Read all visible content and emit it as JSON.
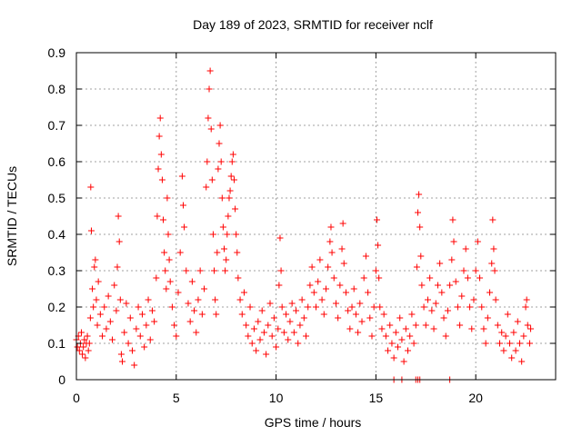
{
  "chart_data": {
    "type": "scatter",
    "title": "Day 189 of 2023, SRMTID for receiver nclf",
    "xlabel": "GPS time / hours",
    "ylabel": "SRMTID / TECUs",
    "xlim": [
      0,
      24
    ],
    "ylim": [
      0,
      0.9
    ],
    "xticks": [
      0,
      5,
      10,
      15,
      20
    ],
    "yticks": [
      0,
      0.1,
      0.2,
      0.3,
      0.4,
      0.5,
      0.6,
      0.7,
      0.8,
      0.9
    ],
    "xtick_labels": [
      "0",
      "5",
      "10",
      "15",
      "20"
    ],
    "ytick_labels": [
      "0",
      "0.1",
      "0.2",
      "0.3",
      "0.4",
      "0.5",
      "0.6",
      "0.7",
      "0.8",
      "0.9"
    ],
    "grid": true,
    "marker": "plus",
    "color": "#ff0000",
    "series": [
      {
        "name": "SRMTID",
        "points": [
          [
            0.0,
            0.11
          ],
          [
            0.05,
            0.09
          ],
          [
            0.1,
            0.12
          ],
          [
            0.15,
            0.08
          ],
          [
            0.2,
            0.1
          ],
          [
            0.25,
            0.13
          ],
          [
            0.3,
            0.07
          ],
          [
            0.35,
            0.09
          ],
          [
            0.4,
            0.11
          ],
          [
            0.45,
            0.06
          ],
          [
            0.5,
            0.1
          ],
          [
            0.55,
            0.12
          ],
          [
            0.6,
            0.08
          ],
          [
            0.65,
            0.1
          ],
          [
            0.7,
            0.17
          ],
          [
            0.72,
            0.53
          ],
          [
            0.75,
            0.41
          ],
          [
            0.8,
            0.25
          ],
          [
            0.85,
            0.2
          ],
          [
            0.9,
            0.31
          ],
          [
            0.95,
            0.33
          ],
          [
            1.0,
            0.22
          ],
          [
            1.05,
            0.15
          ],
          [
            1.1,
            0.27
          ],
          [
            1.2,
            0.18
          ],
          [
            1.3,
            0.12
          ],
          [
            1.4,
            0.2
          ],
          [
            1.5,
            0.14
          ],
          [
            1.6,
            0.23
          ],
          [
            1.7,
            0.16
          ],
          [
            1.8,
            0.11
          ],
          [
            1.9,
            0.26
          ],
          [
            2.0,
            0.19
          ],
          [
            2.05,
            0.31
          ],
          [
            2.1,
            0.45
          ],
          [
            2.15,
            0.38
          ],
          [
            2.2,
            0.22
          ],
          [
            2.25,
            0.07
          ],
          [
            2.3,
            0.05
          ],
          [
            2.4,
            0.13
          ],
          [
            2.5,
            0.21
          ],
          [
            2.6,
            0.1
          ],
          [
            2.7,
            0.17
          ],
          [
            2.8,
            0.08
          ],
          [
            2.9,
            0.04
          ],
          [
            3.0,
            0.14
          ],
          [
            3.1,
            0.2
          ],
          [
            3.2,
            0.12
          ],
          [
            3.3,
            0.18
          ],
          [
            3.4,
            0.09
          ],
          [
            3.5,
            0.15
          ],
          [
            3.6,
            0.22
          ],
          [
            3.7,
            0.11
          ],
          [
            3.8,
            0.19
          ],
          [
            3.9,
            0.16
          ],
          [
            4.0,
            0.28
          ],
          [
            4.05,
            0.45
          ],
          [
            4.1,
            0.58
          ],
          [
            4.15,
            0.67
          ],
          [
            4.2,
            0.72
          ],
          [
            4.25,
            0.62
          ],
          [
            4.3,
            0.55
          ],
          [
            4.35,
            0.44
          ],
          [
            4.4,
            0.35
          ],
          [
            4.45,
            0.3
          ],
          [
            4.5,
            0.25
          ],
          [
            4.55,
            0.5
          ],
          [
            4.6,
            0.4
          ],
          [
            4.65,
            0.33
          ],
          [
            4.7,
            0.27
          ],
          [
            4.8,
            0.2
          ],
          [
            4.9,
            0.15
          ],
          [
            5.0,
            0.12
          ],
          [
            5.1,
            0.24
          ],
          [
            5.2,
            0.35
          ],
          [
            5.3,
            0.56
          ],
          [
            5.35,
            0.48
          ],
          [
            5.4,
            0.42
          ],
          [
            5.5,
            0.3
          ],
          [
            5.6,
            0.21
          ],
          [
            5.7,
            0.16
          ],
          [
            5.8,
            0.27
          ],
          [
            5.9,
            0.19
          ],
          [
            6.0,
            0.13
          ],
          [
            6.1,
            0.22
          ],
          [
            6.2,
            0.3
          ],
          [
            6.3,
            0.18
          ],
          [
            6.4,
            0.25
          ],
          [
            6.5,
            0.53
          ],
          [
            6.55,
            0.6
          ],
          [
            6.6,
            0.72
          ],
          [
            6.65,
            0.8
          ],
          [
            6.7,
            0.85
          ],
          [
            6.75,
            0.69
          ],
          [
            6.8,
            0.55
          ],
          [
            6.85,
            0.4
          ],
          [
            6.9,
            0.3
          ],
          [
            6.95,
            0.22
          ],
          [
            7.0,
            0.18
          ],
          [
            7.05,
            0.35
          ],
          [
            7.1,
            0.58
          ],
          [
            7.15,
            0.65
          ],
          [
            7.2,
            0.7
          ],
          [
            7.25,
            0.6
          ],
          [
            7.3,
            0.5
          ],
          [
            7.35,
            0.42
          ],
          [
            7.4,
            0.36
          ],
          [
            7.45,
            0.3
          ],
          [
            7.5,
            0.33
          ],
          [
            7.55,
            0.4
          ],
          [
            7.6,
            0.45
          ],
          [
            7.65,
            0.5
          ],
          [
            7.7,
            0.52
          ],
          [
            7.75,
            0.56
          ],
          [
            7.8,
            0.6
          ],
          [
            7.85,
            0.62
          ],
          [
            7.9,
            0.55
          ],
          [
            7.95,
            0.47
          ],
          [
            8.0,
            0.4
          ],
          [
            8.05,
            0.35
          ],
          [
            8.1,
            0.28
          ],
          [
            8.2,
            0.22
          ],
          [
            8.3,
            0.18
          ],
          [
            8.4,
            0.24
          ],
          [
            8.5,
            0.15
          ],
          [
            8.6,
            0.12
          ],
          [
            8.7,
            0.2
          ],
          [
            8.8,
            0.1
          ],
          [
            8.9,
            0.14
          ],
          [
            9.0,
            0.08
          ],
          [
            9.1,
            0.16
          ],
          [
            9.2,
            0.11
          ],
          [
            9.3,
            0.19
          ],
          [
            9.4,
            0.13
          ],
          [
            9.5,
            0.07
          ],
          [
            9.6,
            0.15
          ],
          [
            9.7,
            0.21
          ],
          [
            9.8,
            0.12
          ],
          [
            9.9,
            0.17
          ],
          [
            10.0,
            0.09
          ],
          [
            10.1,
            0.14
          ],
          [
            10.15,
            0.26
          ],
          [
            10.2,
            0.39
          ],
          [
            10.25,
            0.3
          ],
          [
            10.3,
            0.2
          ],
          [
            10.4,
            0.13
          ],
          [
            10.5,
            0.18
          ],
          [
            10.6,
            0.11
          ],
          [
            10.7,
            0.16
          ],
          [
            10.8,
            0.21
          ],
          [
            10.9,
            0.13
          ],
          [
            11.0,
            0.19
          ],
          [
            11.1,
            0.1
          ],
          [
            11.2,
            0.15
          ],
          [
            11.3,
            0.22
          ],
          [
            11.4,
            0.17
          ],
          [
            11.5,
            0.12
          ],
          [
            11.6,
            0.2
          ],
          [
            11.7,
            0.26
          ],
          [
            11.8,
            0.31
          ],
          [
            11.9,
            0.24
          ],
          [
            12.0,
            0.2
          ],
          [
            12.1,
            0.27
          ],
          [
            12.2,
            0.33
          ],
          [
            12.3,
            0.22
          ],
          [
            12.4,
            0.18
          ],
          [
            12.5,
            0.25
          ],
          [
            12.6,
            0.31
          ],
          [
            12.7,
            0.38
          ],
          [
            12.75,
            0.42
          ],
          [
            12.8,
            0.35
          ],
          [
            12.9,
            0.28
          ],
          [
            13.0,
            0.21
          ],
          [
            13.1,
            0.17
          ],
          [
            13.2,
            0.26
          ],
          [
            13.3,
            0.36
          ],
          [
            13.35,
            0.43
          ],
          [
            13.4,
            0.32
          ],
          [
            13.5,
            0.24
          ],
          [
            13.6,
            0.19
          ],
          [
            13.7,
            0.14
          ],
          [
            13.8,
            0.2
          ],
          [
            13.9,
            0.25
          ],
          [
            14.0,
            0.18
          ],
          [
            14.1,
            0.13
          ],
          [
            14.2,
            0.21
          ],
          [
            14.3,
            0.16
          ],
          [
            14.4,
            0.28
          ],
          [
            14.5,
            0.34
          ],
          [
            14.6,
            0.24
          ],
          [
            14.7,
            0.17
          ],
          [
            14.8,
            0.12
          ],
          [
            14.9,
            0.2
          ],
          [
            15.0,
            0.3
          ],
          [
            15.05,
            0.44
          ],
          [
            15.1,
            0.37
          ],
          [
            15.15,
            0.28
          ],
          [
            15.2,
            0.2
          ],
          [
            15.3,
            0.14
          ],
          [
            15.4,
            0.18
          ],
          [
            15.5,
            0.12
          ],
          [
            15.6,
            0.08
          ],
          [
            15.7,
            0.15
          ],
          [
            15.8,
            0.1
          ],
          [
            15.9,
            0.06
          ],
          [
            16.0,
            0.13
          ],
          [
            16.1,
            0.09
          ],
          [
            16.2,
            0.17
          ],
          [
            16.3,
            0.11
          ],
          [
            16.4,
            0.05
          ],
          [
            16.5,
            0.14
          ],
          [
            16.6,
            0.08
          ],
          [
            16.7,
            0.12
          ],
          [
            16.8,
            0.18
          ],
          [
            16.9,
            0.1
          ],
          [
            17.0,
            0.15
          ],
          [
            17.05,
            0.31
          ],
          [
            17.1,
            0.46
          ],
          [
            17.15,
            0.51
          ],
          [
            17.2,
            0.42
          ],
          [
            17.25,
            0.34
          ],
          [
            17.3,
            0.26
          ],
          [
            17.4,
            0.2
          ],
          [
            17.5,
            0.15
          ],
          [
            17.6,
            0.22
          ],
          [
            17.7,
            0.28
          ],
          [
            17.8,
            0.19
          ],
          [
            17.9,
            0.14
          ],
          [
            18.0,
            0.21
          ],
          [
            18.1,
            0.26
          ],
          [
            18.2,
            0.32
          ],
          [
            18.3,
            0.24
          ],
          [
            18.4,
            0.17
          ],
          [
            18.5,
            0.12
          ],
          [
            18.6,
            0.19
          ],
          [
            18.7,
            0.26
          ],
          [
            18.8,
            0.33
          ],
          [
            18.85,
            0.44
          ],
          [
            18.9,
            0.38
          ],
          [
            19.0,
            0.27
          ],
          [
            19.1,
            0.2
          ],
          [
            19.2,
            0.15
          ],
          [
            19.3,
            0.23
          ],
          [
            19.4,
            0.3
          ],
          [
            19.5,
            0.36
          ],
          [
            19.6,
            0.28
          ],
          [
            19.7,
            0.2
          ],
          [
            19.8,
            0.14
          ],
          [
            19.9,
            0.22
          ],
          [
            20.0,
            0.3
          ],
          [
            20.1,
            0.38
          ],
          [
            20.2,
            0.28
          ],
          [
            20.3,
            0.2
          ],
          [
            20.4,
            0.14
          ],
          [
            20.5,
            0.1
          ],
          [
            20.6,
            0.17
          ],
          [
            20.7,
            0.24
          ],
          [
            20.8,
            0.32
          ],
          [
            20.85,
            0.44
          ],
          [
            20.9,
            0.36
          ],
          [
            20.95,
            0.3
          ],
          [
            21.0,
            0.22
          ],
          [
            21.1,
            0.15
          ],
          [
            21.2,
            0.1
          ],
          [
            21.3,
            0.13
          ],
          [
            21.4,
            0.08
          ],
          [
            21.5,
            0.12
          ],
          [
            21.6,
            0.18
          ],
          [
            21.7,
            0.1
          ],
          [
            21.8,
            0.06
          ],
          [
            21.9,
            0.13
          ],
          [
            22.0,
            0.08
          ],
          [
            22.1,
            0.16
          ],
          [
            22.2,
            0.1
          ],
          [
            22.3,
            0.05
          ],
          [
            22.4,
            0.12
          ],
          [
            22.5,
            0.2
          ],
          [
            22.55,
            0.22
          ],
          [
            22.6,
            0.15
          ],
          [
            22.7,
            0.1
          ],
          [
            22.75,
            0.14
          ],
          [
            15.9,
            0.0
          ],
          [
            16.3,
            0.0
          ],
          [
            17.0,
            0.0
          ],
          [
            17.1,
            0.0
          ],
          [
            17.2,
            0.0
          ],
          [
            18.7,
            0.0
          ]
        ]
      }
    ]
  }
}
